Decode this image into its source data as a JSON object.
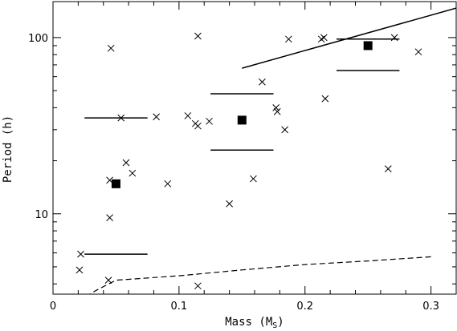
{
  "chart_data": {
    "type": "scatter",
    "xlabel": "Mass (M",
    "xlabel_sub": "S",
    "xlabel_close": ")",
    "ylabel": "Period (h)",
    "xlim": [
      0,
      0.32
    ],
    "ylim": [
      3.5,
      160
    ],
    "yscale": "log",
    "grid": false,
    "x_ticks": [
      0,
      0.1,
      0.2,
      0.3
    ],
    "x_tick_labels": [
      "0",
      "0.1",
      "0.2",
      "0.3"
    ],
    "x_minor_ticks": [
      0.02,
      0.04,
      0.06,
      0.08,
      0.12,
      0.14,
      0.16,
      0.18,
      0.22,
      0.24,
      0.26,
      0.28
    ],
    "y_ticks": [
      10,
      100
    ],
    "y_tick_labels": [
      "10",
      "100"
    ],
    "y_minor_ticks": [
      4,
      5,
      6,
      7,
      8,
      9,
      20,
      30,
      40,
      50,
      60,
      70,
      80,
      90
    ],
    "crosses": [
      {
        "x": 0.021,
        "y": 4.8
      },
      {
        "x": 0.022,
        "y": 5.9
      },
      {
        "x": 0.044,
        "y": 4.2
      },
      {
        "x": 0.045,
        "y": 9.5
      },
      {
        "x": 0.045,
        "y": 15.5
      },
      {
        "x": 0.046,
        "y": 87
      },
      {
        "x": 0.054,
        "y": 35
      },
      {
        "x": 0.058,
        "y": 19.5
      },
      {
        "x": 0.063,
        "y": 17
      },
      {
        "x": 0.082,
        "y": 35.5
      },
      {
        "x": 0.091,
        "y": 14.8
      },
      {
        "x": 0.107,
        "y": 36
      },
      {
        "x": 0.113,
        "y": 32.5
      },
      {
        "x": 0.115,
        "y": 31.5
      },
      {
        "x": 0.115,
        "y": 102
      },
      {
        "x": 0.115,
        "y": 3.9
      },
      {
        "x": 0.124,
        "y": 33.5
      },
      {
        "x": 0.14,
        "y": 11.4
      },
      {
        "x": 0.159,
        "y": 15.8
      },
      {
        "x": 0.166,
        "y": 56
      },
      {
        "x": 0.177,
        "y": 40
      },
      {
        "x": 0.178,
        "y": 38
      },
      {
        "x": 0.184,
        "y": 30
      },
      {
        "x": 0.187,
        "y": 98
      },
      {
        "x": 0.213,
        "y": 98
      },
      {
        "x": 0.215,
        "y": 100
      },
      {
        "x": 0.216,
        "y": 45
      },
      {
        "x": 0.266,
        "y": 18
      },
      {
        "x": 0.271,
        "y": 100
      },
      {
        "x": 0.29,
        "y": 83
      }
    ],
    "squares": [
      {
        "x": 0.05,
        "y": 14.8
      },
      {
        "x": 0.15,
        "y": 34
      },
      {
        "x": 0.25,
        "y": 90
      }
    ],
    "horizontal_segments": [
      {
        "x0": 0.025,
        "x1": 0.075,
        "y": 35
      },
      {
        "x0": 0.025,
        "x1": 0.075,
        "y": 5.9
      },
      {
        "x0": 0.125,
        "x1": 0.175,
        "y": 48
      },
      {
        "x0": 0.125,
        "x1": 0.175,
        "y": 23
      },
      {
        "x0": 0.225,
        "x1": 0.275,
        "y": 98
      },
      {
        "x0": 0.225,
        "x1": 0.275,
        "y": 65
      }
    ],
    "solid_line": [
      {
        "x": 0.15,
        "y": 67
      },
      {
        "x": 0.32,
        "y": 147
      }
    ],
    "dashed_line": [
      {
        "x": 0.02,
        "y": 3.2
      },
      {
        "x": 0.035,
        "y": 3.7
      },
      {
        "x": 0.05,
        "y": 4.2
      },
      {
        "x": 0.1,
        "y": 4.45
      },
      {
        "x": 0.15,
        "y": 4.8
      },
      {
        "x": 0.2,
        "y": 5.15
      },
      {
        "x": 0.25,
        "y": 5.4
      },
      {
        "x": 0.3,
        "y": 5.7
      }
    ]
  }
}
